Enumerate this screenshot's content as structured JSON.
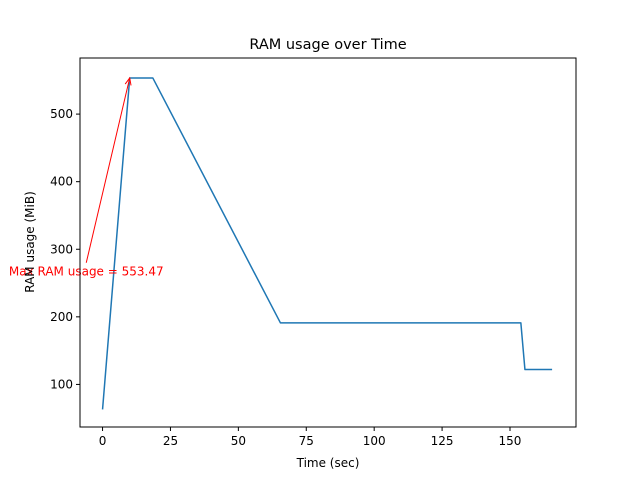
{
  "chart_data": {
    "type": "line",
    "title": "RAM usage over Time",
    "xlabel": "Time (sec)",
    "ylabel": "RAM usage (MiB)",
    "xlim": [
      -8.3,
      174.3
    ],
    "ylim": [
      37,
      583
    ],
    "xticks": [
      0,
      25,
      50,
      75,
      100,
      125,
      150
    ],
    "yticks": [
      100,
      200,
      300,
      400,
      500
    ],
    "grid": false,
    "series": [
      {
        "color": "#1f77b4",
        "x": [
          0,
          10,
          18.5,
          65.5,
          154,
          155.5,
          165.5
        ],
        "y": [
          63,
          553.47,
          553.47,
          191,
          191,
          122,
          122
        ]
      }
    ],
    "annotation": {
      "text": "Max RAM usage = 553.47",
      "color": "#ff0000",
      "point": [
        10,
        553.47
      ],
      "text_anchor_point": [
        -6,
        280
      ]
    }
  }
}
